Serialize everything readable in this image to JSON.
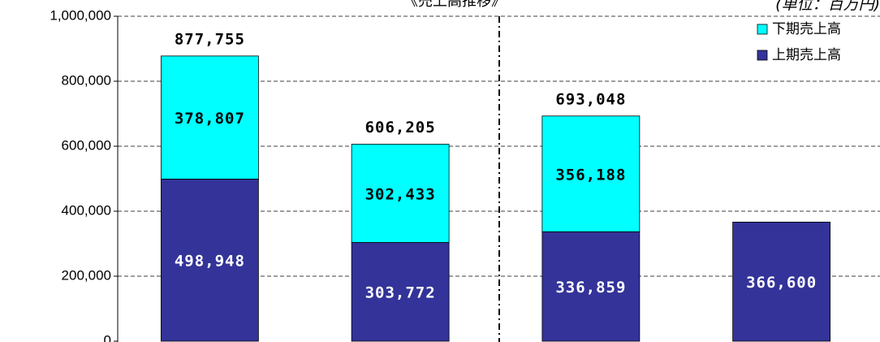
{
  "chart_data": {
    "type": "stacked-bar",
    "title": "《売上高推移》",
    "unit_label": "(単位：百万円)",
    "categories": [
      null,
      null,
      null,
      null
    ],
    "series": [
      {
        "name": "上期売上高",
        "color": "#333399",
        "values": [
          498948,
          303772,
          336859,
          366600
        ],
        "value_labels": [
          "498,948",
          "303,772",
          "336,859",
          "366,600"
        ]
      },
      {
        "name": "下期売上高",
        "color": "#00ffff",
        "values": [
          378807,
          302433,
          356188,
          null
        ],
        "value_labels": [
          "378,807",
          "302,433",
          "356,188",
          null
        ]
      }
    ],
    "totals": [
      877755,
      606205,
      693048,
      null
    ],
    "total_value_labels": [
      "877,755",
      "606,205",
      "693,048",
      null
    ],
    "ylim": [
      0,
      1000000
    ],
    "yticks": [
      {
        "value": 0,
        "label": "0"
      },
      {
        "value": 200000,
        "label": "200,000"
      },
      {
        "value": 400000,
        "label": "400,000"
      },
      {
        "value": 600000,
        "label": "600,000"
      },
      {
        "value": 800000,
        "label": "800,000"
      },
      {
        "value": 1000000,
        "label": "1,000,000"
      }
    ],
    "grid": true
  }
}
